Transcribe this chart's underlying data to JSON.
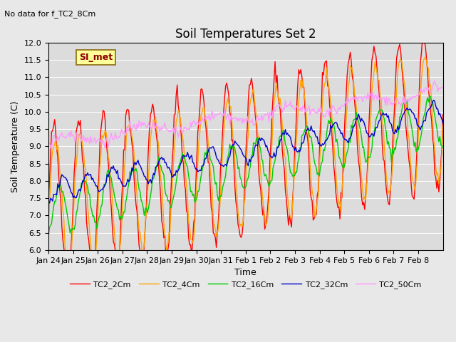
{
  "title": "Soil Temperatures Set 2",
  "subtitle": "No data for f_TC2_8Cm",
  "xlabel": "Time",
  "ylabel": "Soil Temperature (C)",
  "ylim": [
    6.0,
    12.0
  ],
  "yticks": [
    6.0,
    6.5,
    7.0,
    7.5,
    8.0,
    8.5,
    9.0,
    9.5,
    10.0,
    10.5,
    11.0,
    11.5,
    12.0
  ],
  "xtick_labels": [
    "Jan 24",
    "Jan 25",
    "Jan 26",
    "Jan 27",
    "Jan 28",
    "Jan 29",
    "Jan 30",
    "Jan 31",
    "Feb 1",
    "Feb 2",
    "Feb 3",
    "Feb 4",
    "Feb 5",
    "Feb 6",
    "Feb 7",
    "Feb 8"
  ],
  "colors": {
    "TC2_2Cm": "#FF0000",
    "TC2_4Cm": "#FFA500",
    "TC2_16Cm": "#00CC00",
    "TC2_32Cm": "#0000CC",
    "TC2_50Cm": "#FF99FF"
  },
  "legend_label": "SI_met",
  "bg_color": "#E8E8E8",
  "plot_bg": "#DCDCDC"
}
